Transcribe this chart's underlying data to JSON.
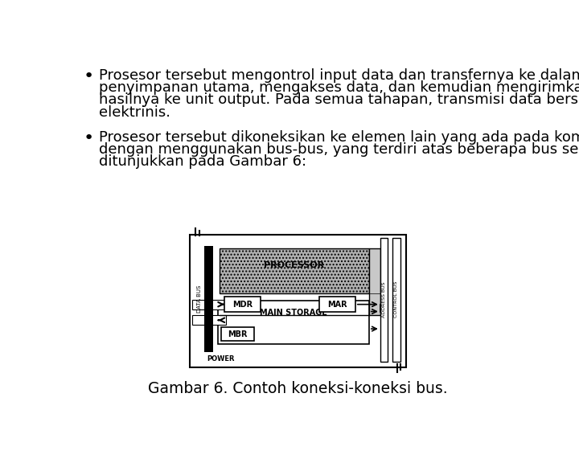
{
  "background_color": "#ffffff",
  "bullet1_line1": "Prosesor tersebut mengontrol input data dan transfernya ke dalam",
  "bullet1_line2": "penyimpanan utama, mengakses data, dan kemudian mengirimkan",
  "bullet1_line3": "hasilnya ke unit output. Pada semua tahapan, transmisi data bersifat",
  "bullet1_line4": "elektrinis.",
  "bullet2_line1": "Prosesor tersebut dikoneksikan ke elemen lain yang ada pada komputer",
  "bullet2_line2": "dengan menggunakan bus-bus, yang terdiri atas beberapa bus seperti",
  "bullet2_line3": "ditunjukkan pada Gambar 6:",
  "caption": "Gambar 6. Contoh koneksi-koneksi bus.",
  "font_family": "DejaVu Sans",
  "text_color": "#000000",
  "font_size_body": 13.0,
  "font_size_caption": 13.5,
  "diagram_gray": "#aaaaaa",
  "diagram_hatch_gray": "#bbbbbb"
}
